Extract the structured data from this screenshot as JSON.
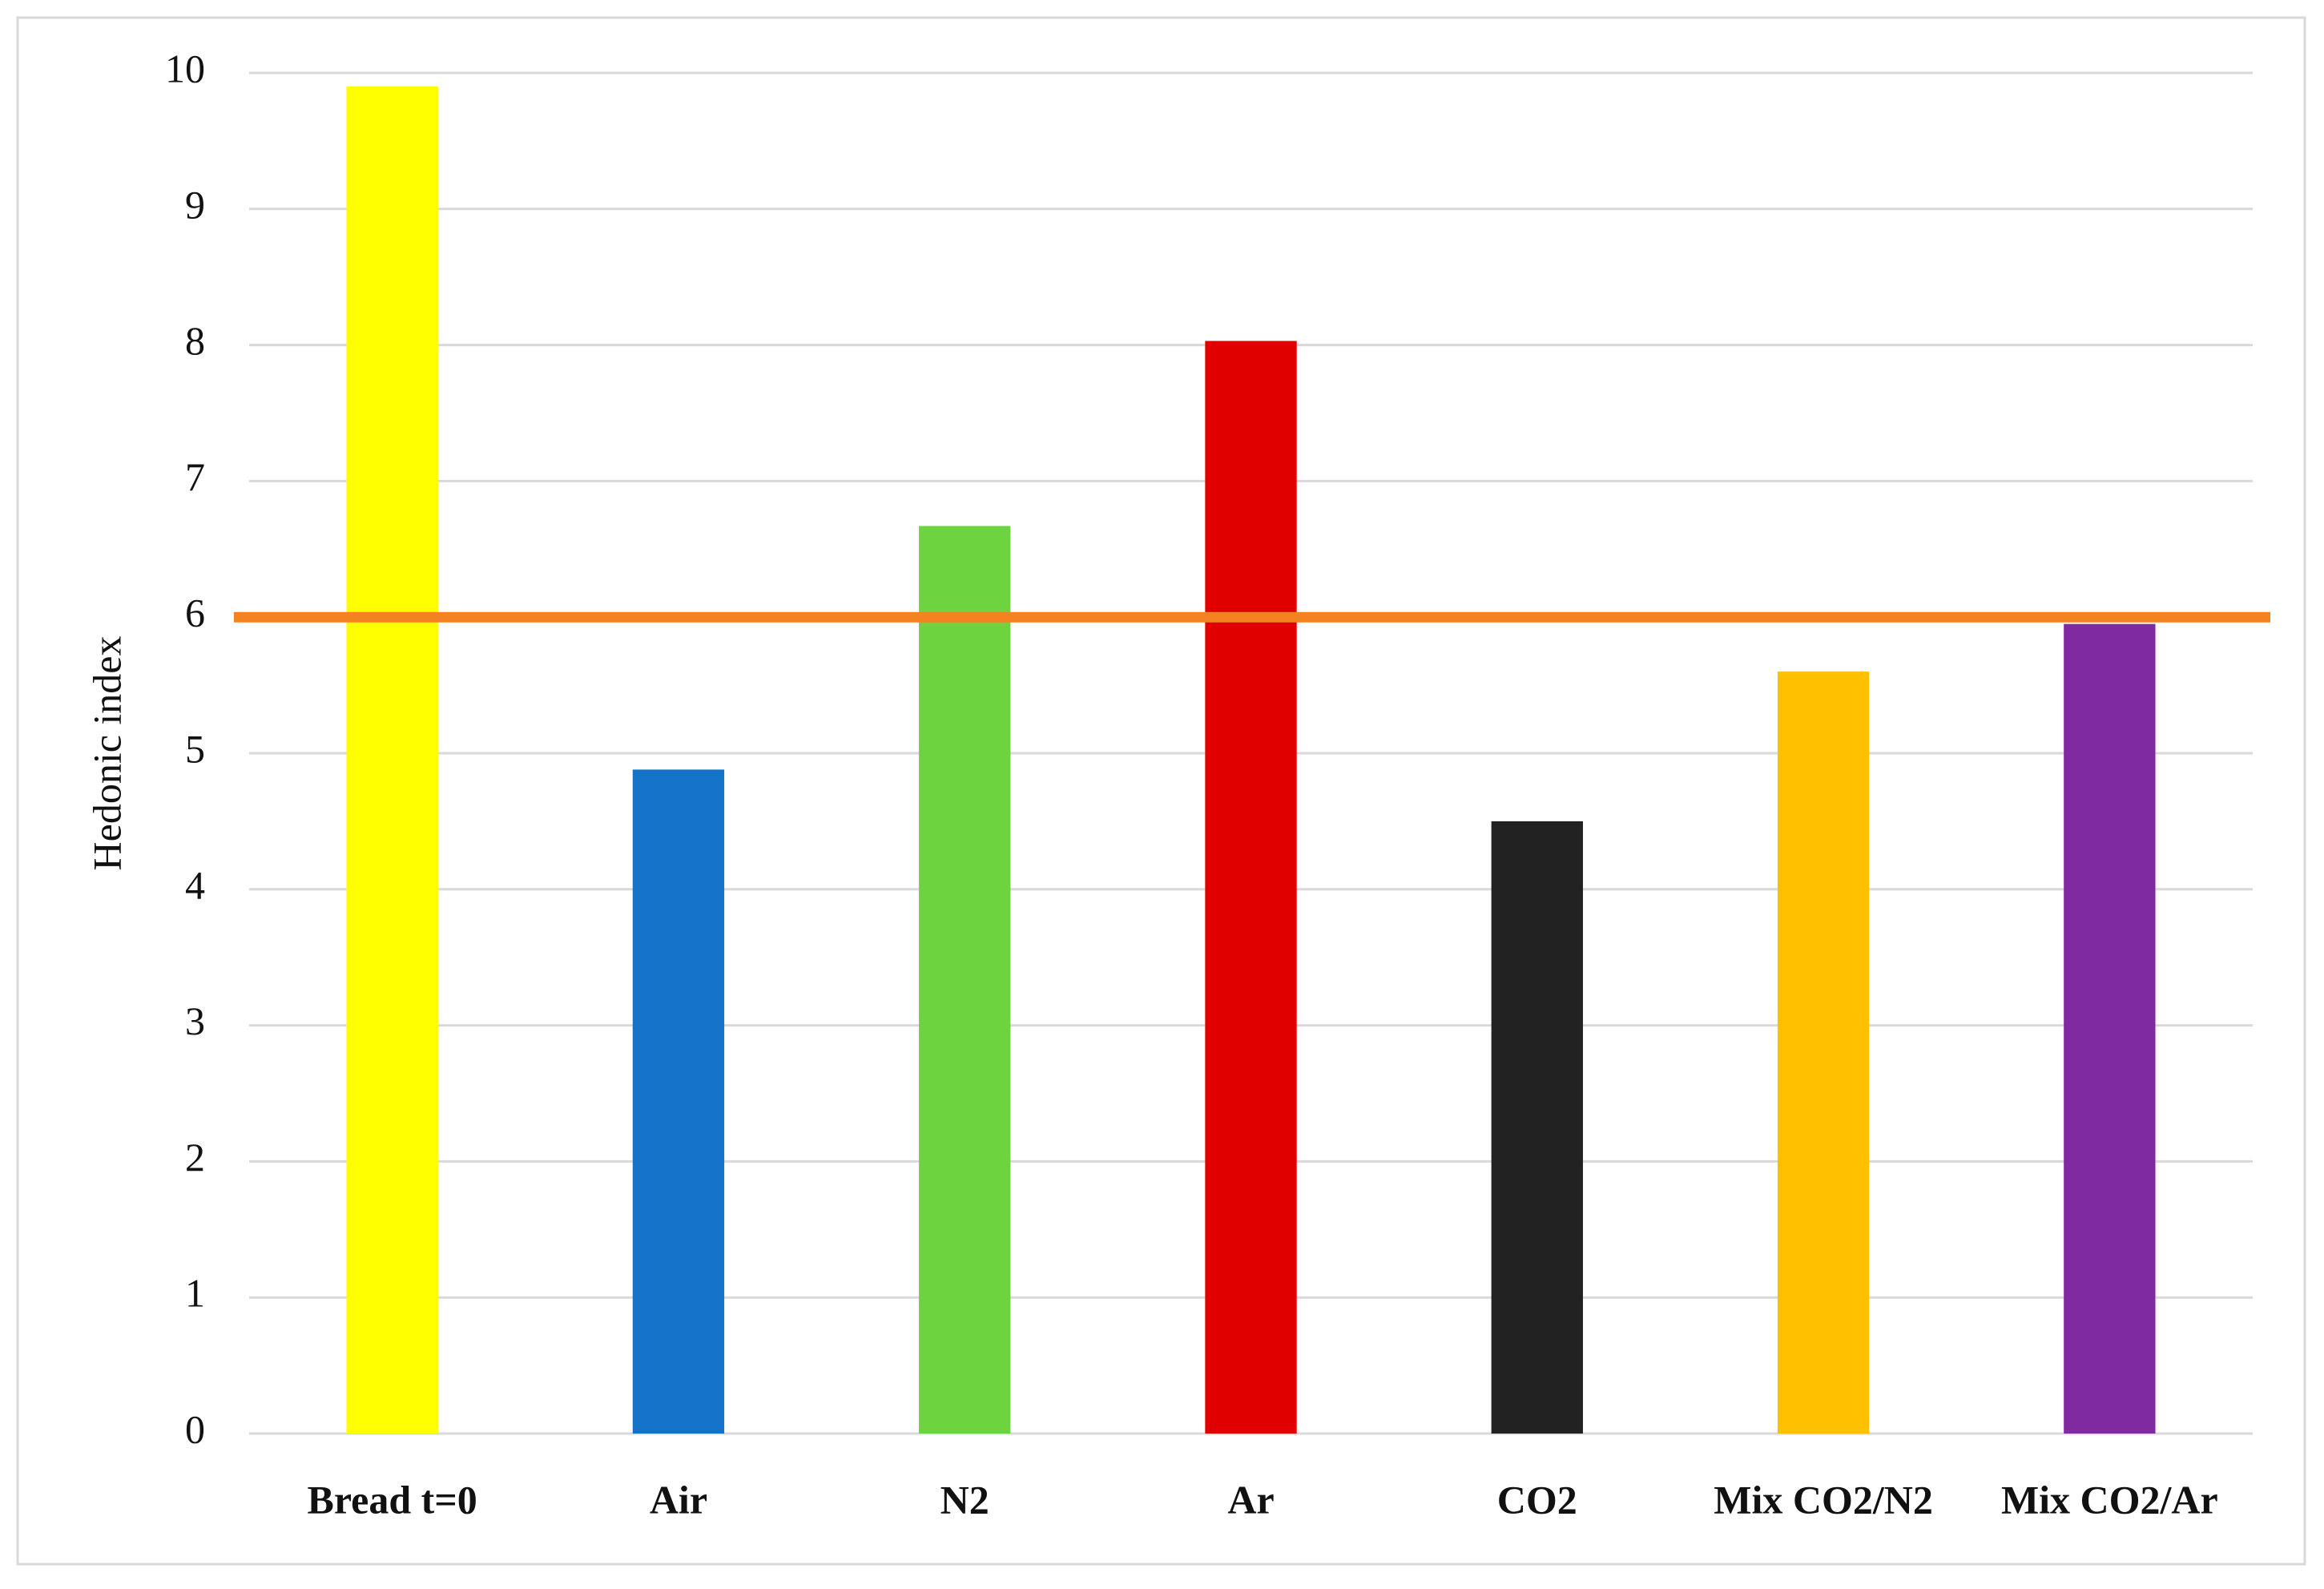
{
  "chart_data": {
    "type": "bar",
    "y_label": "Hedonic index",
    "categories": [
      "Bread t=0",
      "Air",
      "N2",
      "Ar",
      "CO2",
      "Mix CO2/N2",
      "Mix CO2/Ar"
    ],
    "values": [
      9.9,
      4.88,
      6.67,
      8.03,
      4.5,
      5.6,
      5.95
    ],
    "colors": [
      "#ffff00",
      "#1472c8",
      "#6dd33f",
      "#e00000",
      "#222222",
      "#ffc000",
      "#7f2aa0"
    ],
    "reference_line": {
      "value": 6,
      "color": "#f58220"
    },
    "ylim": [
      0,
      10
    ],
    "yticks": [
      0,
      1,
      2,
      3,
      4,
      5,
      6,
      7,
      8,
      9,
      10
    ],
    "grid": true
  }
}
